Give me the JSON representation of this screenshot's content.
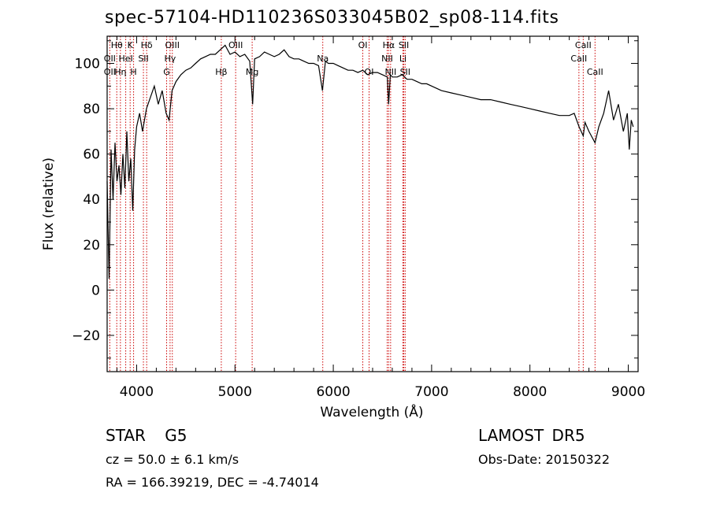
{
  "header": {
    "title": "spec-57104-HD110236S033045B02_sp08-114.fits"
  },
  "info": {
    "classification": "STAR   G5",
    "cz": "cz = 50.0 ± 6.1 km/s",
    "radec": "RA = 166.39219, DEC =  -4.74014",
    "survey": "LAMOST DR5",
    "obs_date": "Obs-Date: 20150322"
  },
  "chart_data": {
    "type": "line",
    "title": "spec-57104-HD110236S033045B02_sp08-114.fits",
    "xlabel": "Wavelength (Å)",
    "ylabel": "Flux (relative)",
    "xlim": [
      3700,
      9100
    ],
    "ylim": [
      -36,
      112
    ],
    "x_ticks": [
      4000,
      5000,
      6000,
      7000,
      8000,
      9000
    ],
    "y_ticks": [
      -20,
      0,
      20,
      40,
      60,
      80,
      100
    ],
    "grid": false,
    "line_color": "#000000",
    "marker_color": "#cc0000",
    "series": [
      {
        "x": [
          3700,
          3720,
          3740,
          3760,
          3780,
          3800,
          3820,
          3840,
          3860,
          3880,
          3900,
          3920,
          3940,
          3960,
          3980,
          4000,
          4030,
          4060,
          4100,
          4140,
          4180,
          4220,
          4260,
          4300,
          4330,
          4360,
          4400,
          4450,
          4500,
          4550,
          4600,
          4650,
          4700,
          4750,
          4800,
          4850,
          4900,
          4950,
          5000,
          5050,
          5100,
          5150,
          5180,
          5200,
          5250,
          5300,
          5350,
          5400,
          5450,
          5500,
          5550,
          5600,
          5650,
          5700,
          5750,
          5800,
          5850,
          5890,
          5920,
          5950,
          6000,
          6050,
          6100,
          6150,
          6200,
          6250,
          6300,
          6350,
          6400,
          6450,
          6500,
          6550,
          6563,
          6580,
          6600,
          6650,
          6700,
          6750,
          6800,
          6850,
          6900,
          6950,
          7000,
          7100,
          7200,
          7300,
          7400,
          7500,
          7600,
          7700,
          7800,
          7900,
          8000,
          8100,
          8200,
          8300,
          8400,
          8450,
          8500,
          8542,
          8560,
          8600,
          8662,
          8700,
          8750,
          8800,
          8850,
          8900,
          8950,
          8990,
          9010,
          9030,
          9050
        ],
        "y": [
          48,
          5,
          62,
          40,
          65,
          48,
          55,
          42,
          60,
          45,
          70,
          48,
          58,
          35,
          62,
          72,
          78,
          70,
          80,
          85,
          90,
          82,
          88,
          78,
          75,
          88,
          92,
          95,
          97,
          98,
          100,
          102,
          103,
          104,
          104,
          106,
          108,
          104,
          105,
          103,
          104,
          101,
          82,
          102,
          103,
          105,
          104,
          103,
          104,
          106,
          103,
          102,
          102,
          101,
          100,
          100,
          99,
          88,
          101,
          100,
          100,
          99,
          98,
          97,
          97,
          96,
          97,
          95,
          96,
          96,
          95,
          94,
          82,
          95,
          94,
          94,
          95,
          93,
          93,
          92,
          91,
          91,
          90,
          88,
          87,
          86,
          85,
          84,
          84,
          83,
          82,
          81,
          80,
          79,
          78,
          77,
          77,
          78,
          72,
          68,
          74,
          70,
          65,
          72,
          78,
          88,
          75,
          82,
          70,
          78,
          62,
          75,
          72
        ]
      }
    ],
    "lines": [
      {
        "label": "Hθ",
        "x": 3798,
        "row": 1
      },
      {
        "label": "OII",
        "x": 3727,
        "row": 2
      },
      {
        "label": "OII",
        "x": 3727,
        "row": 3
      },
      {
        "label": "Hη",
        "x": 3835,
        "row": 3
      },
      {
        "label": "K",
        "x": 3934,
        "row": 1
      },
      {
        "label": "HeI",
        "x": 3889,
        "row": 2
      },
      {
        "label": "H",
        "x": 3969,
        "row": 3
      },
      {
        "label": "Hδ",
        "x": 4102,
        "row": 1
      },
      {
        "label": "SII",
        "x": 4069,
        "row": 2
      },
      {
        "label": "OIII",
        "x": 4363,
        "row": 1
      },
      {
        "label": "Hγ",
        "x": 4340,
        "row": 2
      },
      {
        "label": "G",
        "x": 4305,
        "row": 3
      },
      {
        "label": "OIII",
        "x": 5007,
        "row": 1
      },
      {
        "label": "Hβ",
        "x": 4861,
        "row": 3
      },
      {
        "label": "Mg",
        "x": 5175,
        "row": 3
      },
      {
        "label": "Na",
        "x": 5893,
        "row": 2
      },
      {
        "label": "OI",
        "x": 6300,
        "row": 1
      },
      {
        "label": "OI",
        "x": 6364,
        "row": 3
      },
      {
        "label": "Hα",
        "x": 6563,
        "row": 1
      },
      {
        "label": "NII",
        "x": 6548,
        "row": 2
      },
      {
        "label": "NII",
        "x": 6583,
        "row": 3
      },
      {
        "label": "Li",
        "x": 6708,
        "row": 2
      },
      {
        "label": "SII",
        "x": 6717,
        "row": 1
      },
      {
        "label": "SII",
        "x": 6731,
        "row": 3
      },
      {
        "label": "CaII",
        "x": 8542,
        "row": 1
      },
      {
        "label": "CaII",
        "x": 8498,
        "row": 2
      },
      {
        "label": "CaII",
        "x": 8662,
        "row": 3
      }
    ]
  }
}
